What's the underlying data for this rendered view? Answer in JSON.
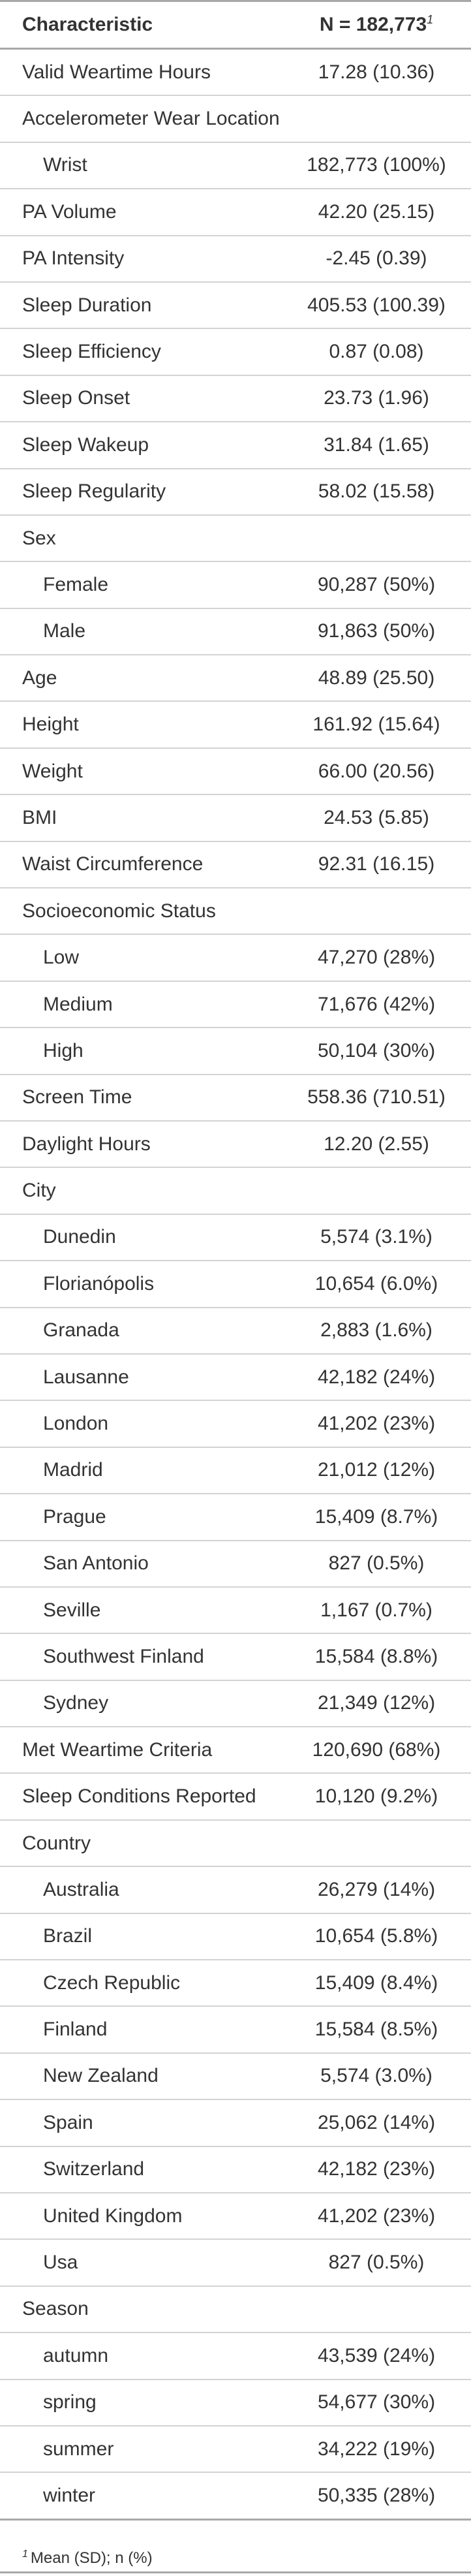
{
  "header": {
    "characteristic": "Characteristic",
    "n_label": "N = 182,773",
    "n_footnote_mark": "1"
  },
  "rows": [
    {
      "label": "Valid Weartime Hours",
      "value": "17.28 (10.36)",
      "indent": false
    },
    {
      "label": "Accelerometer Wear Location",
      "value": "",
      "indent": false
    },
    {
      "label": "Wrist",
      "value": "182,773 (100%)",
      "indent": true
    },
    {
      "label": "PA Volume",
      "value": "42.20 (25.15)",
      "indent": false
    },
    {
      "label": "PA Intensity",
      "value": "-2.45 (0.39)",
      "indent": false
    },
    {
      "label": "Sleep Duration",
      "value": "405.53 (100.39)",
      "indent": false
    },
    {
      "label": "Sleep Efficiency",
      "value": "0.87 (0.08)",
      "indent": false
    },
    {
      "label": "Sleep Onset",
      "value": "23.73 (1.96)",
      "indent": false
    },
    {
      "label": "Sleep Wakeup",
      "value": "31.84 (1.65)",
      "indent": false
    },
    {
      "label": "Sleep Regularity",
      "value": "58.02 (15.58)",
      "indent": false
    },
    {
      "label": "Sex",
      "value": "",
      "indent": false
    },
    {
      "label": "Female",
      "value": "90,287 (50%)",
      "indent": true
    },
    {
      "label": "Male",
      "value": "91,863 (50%)",
      "indent": true
    },
    {
      "label": "Age",
      "value": "48.89 (25.50)",
      "indent": false
    },
    {
      "label": "Height",
      "value": "161.92 (15.64)",
      "indent": false
    },
    {
      "label": "Weight",
      "value": "66.00 (20.56)",
      "indent": false
    },
    {
      "label": "BMI",
      "value": "24.53 (5.85)",
      "indent": false
    },
    {
      "label": "Waist Circumference",
      "value": "92.31 (16.15)",
      "indent": false
    },
    {
      "label": "Socioeconomic Status",
      "value": "",
      "indent": false
    },
    {
      "label": "Low",
      "value": "47,270 (28%)",
      "indent": true
    },
    {
      "label": "Medium",
      "value": "71,676 (42%)",
      "indent": true
    },
    {
      "label": "High",
      "value": "50,104 (30%)",
      "indent": true
    },
    {
      "label": "Screen Time",
      "value": "558.36 (710.51)",
      "indent": false
    },
    {
      "label": "Daylight Hours",
      "value": "12.20 (2.55)",
      "indent": false
    },
    {
      "label": "City",
      "value": "",
      "indent": false
    },
    {
      "label": "Dunedin",
      "value": "5,574 (3.1%)",
      "indent": true
    },
    {
      "label": "Florianópolis",
      "value": "10,654 (6.0%)",
      "indent": true
    },
    {
      "label": "Granada",
      "value": "2,883 (1.6%)",
      "indent": true
    },
    {
      "label": "Lausanne",
      "value": "42,182 (24%)",
      "indent": true
    },
    {
      "label": "London",
      "value": "41,202 (23%)",
      "indent": true
    },
    {
      "label": "Madrid",
      "value": "21,012 (12%)",
      "indent": true
    },
    {
      "label": "Prague",
      "value": "15,409 (8.7%)",
      "indent": true
    },
    {
      "label": "San Antonio",
      "value": "827 (0.5%)",
      "indent": true
    },
    {
      "label": "Seville",
      "value": "1,167 (0.7%)",
      "indent": true
    },
    {
      "label": "Southwest Finland",
      "value": "15,584 (8.8%)",
      "indent": true
    },
    {
      "label": "Sydney",
      "value": "21,349 (12%)",
      "indent": true
    },
    {
      "label": "Met Weartime Criteria",
      "value": "120,690 (68%)",
      "indent": false
    },
    {
      "label": "Sleep Conditions Reported",
      "value": "10,120 (9.2%)",
      "indent": false
    },
    {
      "label": "Country",
      "value": "",
      "indent": false
    },
    {
      "label": "Australia",
      "value": "26,279 (14%)",
      "indent": true
    },
    {
      "label": "Brazil",
      "value": "10,654 (5.8%)",
      "indent": true
    },
    {
      "label": "Czech Republic",
      "value": "15,409 (8.4%)",
      "indent": true
    },
    {
      "label": "Finland",
      "value": "15,584 (8.5%)",
      "indent": true
    },
    {
      "label": "New Zealand",
      "value": "5,574 (3.0%)",
      "indent": true
    },
    {
      "label": "Spain",
      "value": "25,062 (14%)",
      "indent": true
    },
    {
      "label": "Switzerland",
      "value": "42,182 (23%)",
      "indent": true
    },
    {
      "label": "United Kingdom",
      "value": "41,202 (23%)",
      "indent": true
    },
    {
      "label": "Usa",
      "value": "827 (0.5%)",
      "indent": true
    },
    {
      "label": "Season",
      "value": "",
      "indent": false
    },
    {
      "label": "autumn",
      "value": "43,539 (24%)",
      "indent": true
    },
    {
      "label": "spring",
      "value": "54,677 (30%)",
      "indent": true
    },
    {
      "label": "summer",
      "value": "34,222 (19%)",
      "indent": true
    },
    {
      "label": "winter",
      "value": "50,335 (28%)",
      "indent": true
    }
  ],
  "footnote": {
    "mark": "1",
    "text": "Mean (SD); n (%)"
  }
}
